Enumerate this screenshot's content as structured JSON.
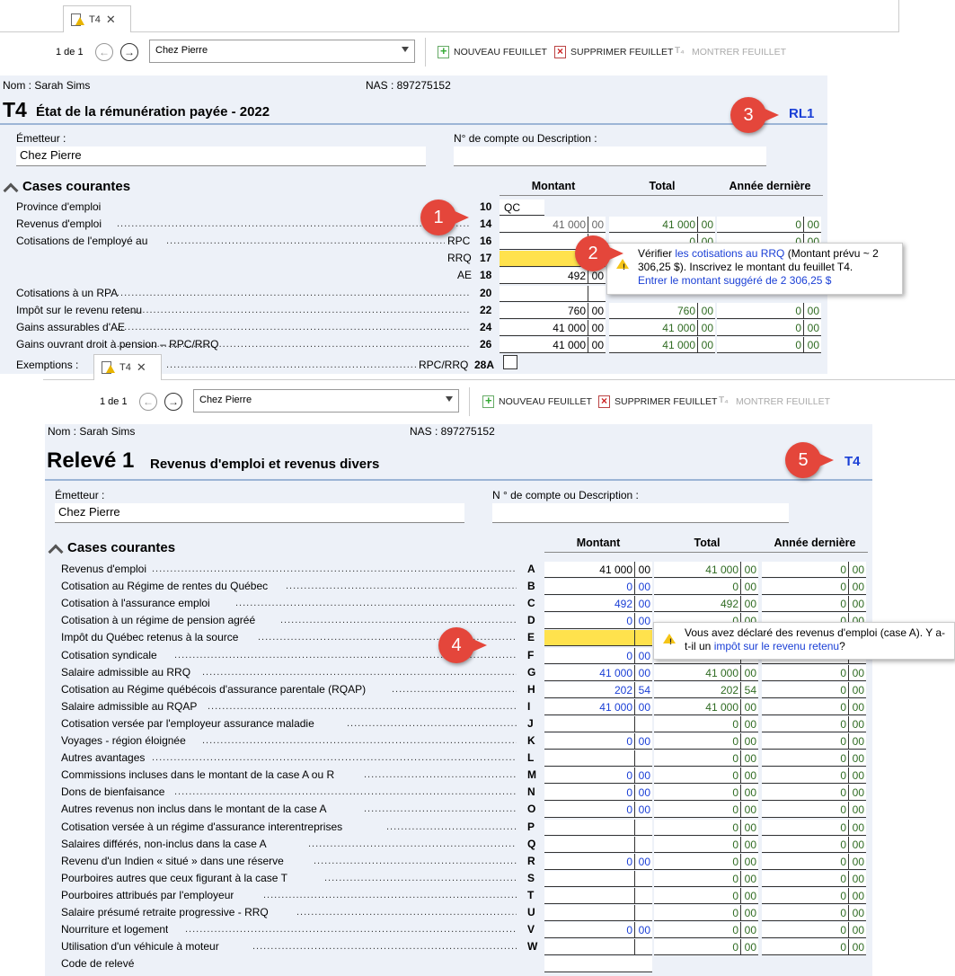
{
  "top": {
    "tab_label": "T4",
    "page_indicator": "1 de 1",
    "employer_select": "Chez Pierre",
    "new_sheet": "NOUVEAU FEUILLET",
    "delete_sheet": "SUPPRIMER FEUILLET",
    "show_sheet": "MONTRER FEUILLET",
    "name": "Nom : Sarah Sims",
    "sin": "NAS : 897275152",
    "form_code": "T4",
    "form_title": "État de la rémunération payée - 2022",
    "link": "RL1",
    "issuer_label": "Émetteur :",
    "issuer_value": "Chez Pierre",
    "account_label": "N° de compte ou Description :",
    "section": "Cases courantes",
    "col_amount": "Montant",
    "col_total": "Total",
    "col_last": "Année dernière",
    "rows": [
      {
        "label": "Province d'emploi",
        "box": "10",
        "text": "QC"
      },
      {
        "label": "Revenus d'emploi",
        "box": "14",
        "int": "41 000",
        "dec": "00",
        "t_int": "41 000",
        "t_dec": "00",
        "l_int": "0",
        "l_dec": "00"
      },
      {
        "label": "Cotisations de l'employé au",
        "sub": "RPC",
        "box": "16",
        "t_int": "0",
        "t_dec": "00",
        "l_int": "0",
        "l_dec": "00"
      },
      {
        "sub": "RRQ",
        "box": "17"
      },
      {
        "sub": "AE",
        "box": "18",
        "int": "492",
        "dec": "00"
      },
      {
        "label": "Cotisations à un RPA",
        "box": "20"
      },
      {
        "label": "Impôt sur le revenu retenu",
        "box": "22",
        "int": "760",
        "dec": "00",
        "t_int": "760",
        "t_dec": "00",
        "l_int": "0",
        "l_dec": "00"
      },
      {
        "label": "Gains assurables d'AE",
        "box": "24",
        "int": "41 000",
        "dec": "00",
        "t_int": "41 000",
        "t_dec": "00",
        "l_int": "0",
        "l_dec": "00"
      },
      {
        "label": "Gains ouvrant droit à pension – RPC/RRQ",
        "box": "26",
        "int": "41 000",
        "dec": "00",
        "t_int": "41 000",
        "t_dec": "00",
        "l_int": "0",
        "l_dec": "00"
      },
      {
        "label": "Exemptions :",
        "sub": "RPC/RRQ",
        "box": "28A"
      }
    ],
    "tooltip_prefix": "Vérifier ",
    "tooltip_link": "les cotisations au RRQ",
    "tooltip_rest": " (Montant prévu ~ 2 306,25 $). Inscrivez le montant du feuillet T4.",
    "tooltip_action": "Entrer le montant suggéré de 2 306,25 $",
    "badge1": "1",
    "badge2": "2",
    "badge3": "3"
  },
  "bottom": {
    "tab_label": "T4",
    "page_indicator": "1 de 1",
    "employer_select": "Chez Pierre",
    "new_sheet": "NOUVEAU FEUILLET",
    "delete_sheet": "SUPPRIMER FEUILLET",
    "show_sheet": "MONTRER FEUILLET",
    "name": "Nom : Sarah Sims",
    "sin": "NAS : 897275152",
    "form_code": "Relevé 1",
    "form_title": "Revenus d'emploi et revenus divers",
    "link": "T4",
    "issuer_label": "Émetteur :",
    "issuer_value": "Chez Pierre",
    "account_label": "N ° de compte ou Description :",
    "section": "Cases courantes",
    "col_amount": "Montant",
    "col_total": "Total",
    "col_last": "Année dernière",
    "rows": [
      {
        "label": "Revenus d'emploi",
        "box": "A",
        "int": "41 000",
        "dec": "00",
        "c": "k",
        "t_int": "41 000",
        "t_dec": "00",
        "l_int": "0",
        "l_dec": "00"
      },
      {
        "label": "Cotisation au Régime de rentes du Québec",
        "box": "B",
        "int": "0",
        "dec": "00",
        "c": "b",
        "t_int": "0",
        "t_dec": "00",
        "l_int": "0",
        "l_dec": "00"
      },
      {
        "label": "Cotisation à l'assurance emploi",
        "box": "C",
        "int": "492",
        "dec": "00",
        "c": "b",
        "t_int": "492",
        "t_dec": "00",
        "l_int": "0",
        "l_dec": "00"
      },
      {
        "label": "Cotisation à un régime de pension agréé",
        "box": "D",
        "int": "0",
        "dec": "00",
        "c": "b",
        "t_int": "0",
        "t_dec": "00",
        "l_int": "0",
        "l_dec": "00"
      },
      {
        "label": "Impôt du Québec retenus à la source",
        "box": "E",
        "yellow": true,
        "t_int": "0",
        "t_dec": "00",
        "l_int": "0",
        "l_dec": "00"
      },
      {
        "label": "Cotisation syndicale",
        "box": "F",
        "int": "0",
        "dec": "00",
        "c": "b",
        "t_int": "0",
        "t_dec": "00",
        "l_int": "0",
        "l_dec": "00"
      },
      {
        "label": "Salaire admissible au RRQ",
        "box": "G",
        "int": "41 000",
        "dec": "00",
        "c": "b",
        "t_int": "41 000",
        "t_dec": "00",
        "l_int": "0",
        "l_dec": "00"
      },
      {
        "label": "Cotisation au Régime québécois d'assurance parentale (RQAP)",
        "box": "H",
        "int": "202",
        "dec": "54",
        "c": "b",
        "t_int": "202",
        "t_dec": "54",
        "l_int": "0",
        "l_dec": "00"
      },
      {
        "label": "Salaire admissible au RQAP",
        "box": "I",
        "int": "41 000",
        "dec": "00",
        "c": "b",
        "t_int": "41 000",
        "t_dec": "00",
        "l_int": "0",
        "l_dec": "00"
      },
      {
        "label": "Cotisation versée par l'employeur assurance maladie",
        "box": "J",
        "t_int": "0",
        "t_dec": "00",
        "l_int": "0",
        "l_dec": "00"
      },
      {
        "label": "Voyages - région éloignée",
        "box": "K",
        "int": "0",
        "dec": "00",
        "c": "b",
        "t_int": "0",
        "t_dec": "00",
        "l_int": "0",
        "l_dec": "00"
      },
      {
        "label": "Autres avantages",
        "box": "L",
        "t_int": "0",
        "t_dec": "00",
        "l_int": "0",
        "l_dec": "00"
      },
      {
        "label": "Commissions incluses dans le montant de la case A ou R",
        "box": "M",
        "int": "0",
        "dec": "00",
        "c": "b",
        "t_int": "0",
        "t_dec": "00",
        "l_int": "0",
        "l_dec": "00"
      },
      {
        "label": "Dons de bienfaisance",
        "box": "N",
        "int": "0",
        "dec": "00",
        "c": "b",
        "t_int": "0",
        "t_dec": "00",
        "l_int": "0",
        "l_dec": "00"
      },
      {
        "label": "Autres revenus non inclus dans le montant de la case A",
        "box": "O",
        "int": "0",
        "dec": "00",
        "c": "b",
        "t_int": "0",
        "t_dec": "00",
        "l_int": "0",
        "l_dec": "00"
      },
      {
        "label": "Cotisation versée à un régime d'assurance interentreprises",
        "box": "P",
        "t_int": "0",
        "t_dec": "00",
        "l_int": "0",
        "l_dec": "00"
      },
      {
        "label": "Salaires différés, non-inclus dans la case A",
        "box": "Q",
        "t_int": "0",
        "t_dec": "00",
        "l_int": "0",
        "l_dec": "00"
      },
      {
        "label": "Revenu d'un Indien « situé » dans une réserve",
        "box": "R",
        "int": "0",
        "dec": "00",
        "c": "b",
        "t_int": "0",
        "t_dec": "00",
        "l_int": "0",
        "l_dec": "00"
      },
      {
        "label": "Pourboires autres que ceux figurant à la case T",
        "box": "S",
        "t_int": "0",
        "t_dec": "00",
        "l_int": "0",
        "l_dec": "00"
      },
      {
        "label": "Pourboires attribués par l'employeur",
        "box": "T",
        "t_int": "0",
        "t_dec": "00",
        "l_int": "0",
        "l_dec": "00"
      },
      {
        "label": "Salaire présumé retraite progressive - RRQ",
        "box": "U",
        "t_int": "0",
        "t_dec": "00",
        "l_int": "0",
        "l_dec": "00"
      },
      {
        "label": "Nourriture et logement",
        "box": "V",
        "int": "0",
        "dec": "00",
        "c": "b",
        "t_int": "0",
        "t_dec": "00",
        "l_int": "0",
        "l_dec": "00"
      },
      {
        "label": "Utilisation d'un véhicule à moteur",
        "box": "W",
        "t_int": "0",
        "t_dec": "00",
        "l_int": "0",
        "l_dec": "00"
      },
      {
        "label": "Code de relevé",
        "box": ""
      }
    ],
    "tooltip_prefix": "Vous avez déclaré des revenus d'emploi (case A). Y a-t-il un ",
    "tooltip_link": "impôt sur le revenu retenu",
    "tooltip_suffix": "?",
    "badge4": "4",
    "badge5": "5"
  }
}
